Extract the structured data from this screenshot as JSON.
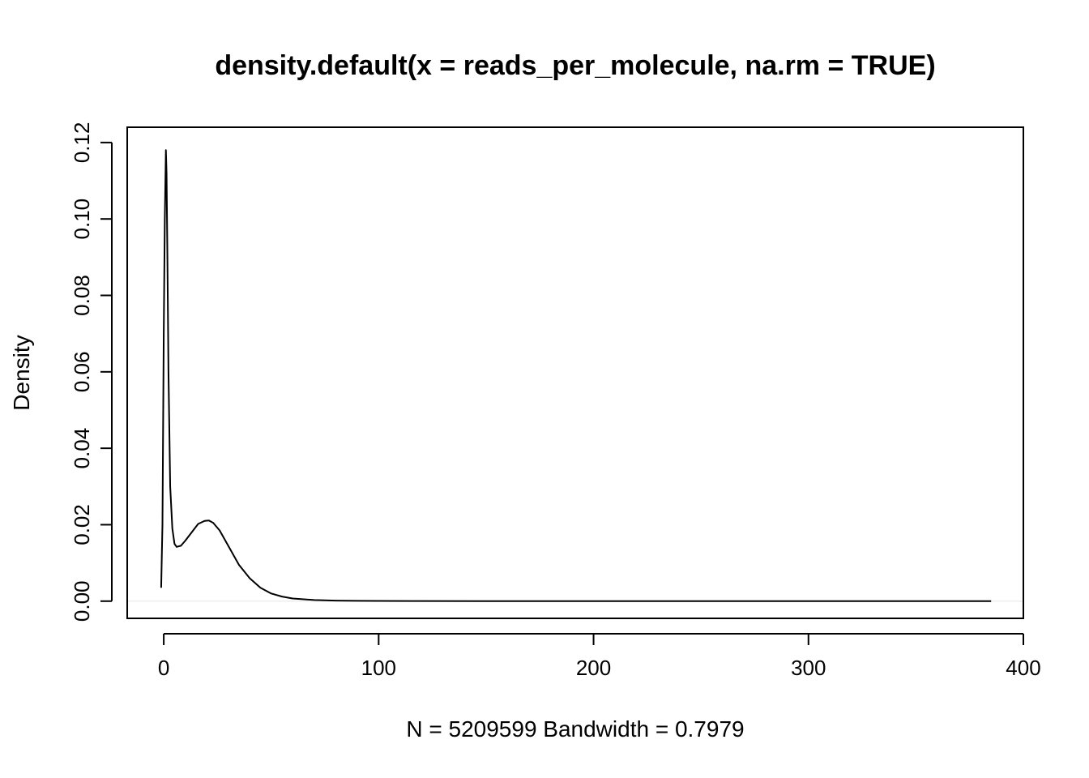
{
  "chart_data": {
    "type": "line",
    "title": "density.default(x = reads_per_molecule, na.rm = TRUE)",
    "xlabel": "N = 5209599   Bandwidth = 0.7979",
    "ylabel": "Density",
    "xlim": [
      -17,
      400
    ],
    "ylim": [
      -0.0045,
      0.124
    ],
    "x_ticks": [
      0,
      100,
      200,
      300,
      400
    ],
    "x_tick_labels": [
      "0",
      "100",
      "200",
      "300",
      "400"
    ],
    "y_ticks": [
      0,
      0.02,
      0.04,
      0.06,
      0.08,
      0.1,
      0.12
    ],
    "y_tick_labels": [
      "0.00",
      "0.02",
      "0.04",
      "0.06",
      "0.08",
      "0.10",
      "0.12"
    ],
    "grid": false,
    "zero_line": true,
    "series": [
      {
        "color": "#000000",
        "x": [
          -1.2,
          -0.6,
          0,
          0.5,
          1.0,
          1.3,
          1.7,
          2.2,
          3,
          4,
          5,
          6,
          8,
          10,
          13,
          16,
          19,
          21,
          23,
          26,
          30,
          35,
          40,
          45,
          50,
          55,
          60,
          70,
          80,
          90,
          100,
          120,
          150,
          200,
          250,
          300,
          350,
          385
        ],
        "y": [
          0.0035,
          0.02,
          0.07,
          0.1,
          0.118,
          0.112,
          0.09,
          0.06,
          0.03,
          0.019,
          0.015,
          0.0142,
          0.0145,
          0.0158,
          0.018,
          0.0202,
          0.021,
          0.0211,
          0.0205,
          0.0185,
          0.0145,
          0.0095,
          0.006,
          0.0035,
          0.002,
          0.0012,
          0.0007,
          0.0003,
          0.00015,
          8e-05,
          5e-05,
          2e-05,
          1e-05,
          0,
          0,
          0,
          0,
          0
        ]
      }
    ]
  }
}
